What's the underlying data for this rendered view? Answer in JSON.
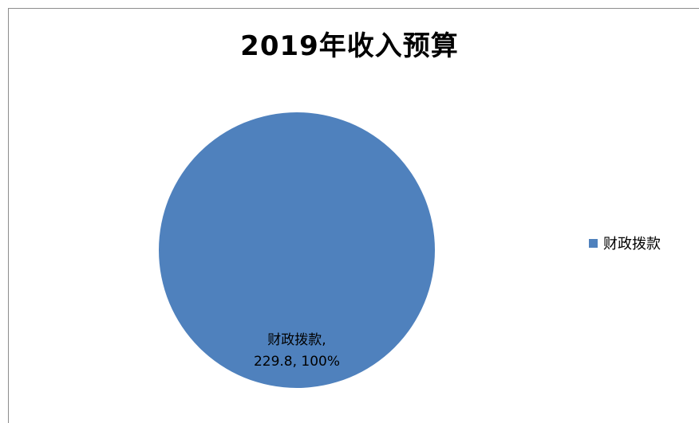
{
  "chart_data": {
    "type": "pie",
    "title": "2019年收入预算",
    "categories": [
      "财政拨款"
    ],
    "values": [
      229.8
    ],
    "percentages": [
      "100%"
    ],
    "data_labels": [
      [
        "财政拨款,",
        "229.8, 100%"
      ]
    ],
    "colors": [
      "#4f81bd"
    ],
    "legend": {
      "position": "right",
      "entries": [
        "财政拨款"
      ]
    }
  }
}
